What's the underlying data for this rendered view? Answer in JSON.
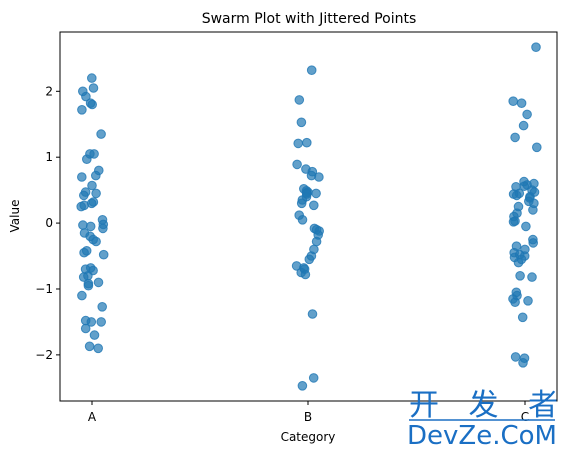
{
  "chart_data": {
    "type": "scatter",
    "title": "Swarm Plot with Jittered Points",
    "xlabel": "Category",
    "ylabel": "Value",
    "categories": [
      "A",
      "B",
      "C"
    ],
    "ylim": [
      -2.7,
      2.9
    ],
    "yticks": [
      -2,
      -1,
      0,
      1,
      2
    ],
    "grid": false,
    "color": "#1f77b4",
    "points": [
      {
        "category": "A",
        "values": [
          2.2,
          2.05,
          2.0,
          1.92,
          1.82,
          1.8,
          1.72,
          1.35,
          1.05,
          1.05,
          0.97,
          0.8,
          0.72,
          0.7,
          0.57,
          0.47,
          0.45,
          0.42,
          0.32,
          0.3,
          0.27,
          0.25,
          0.05,
          -0.02,
          -0.03,
          -0.05,
          -0.08,
          -0.15,
          -0.2,
          -0.25,
          -0.28,
          -0.42,
          -0.45,
          -0.48,
          -0.68,
          -0.7,
          -0.72,
          -0.8,
          -0.82,
          -0.9,
          -0.92,
          -0.95,
          -1.1,
          -1.27,
          -1.48,
          -1.5,
          -1.5,
          -1.6,
          -1.7,
          -1.87,
          -1.9
        ]
      },
      {
        "category": "B",
        "values": [
          2.32,
          1.87,
          1.53,
          1.22,
          1.21,
          0.89,
          0.82,
          0.78,
          0.72,
          0.7,
          0.52,
          0.49,
          0.47,
          0.46,
          0.45,
          0.44,
          0.4,
          0.35,
          0.3,
          0.27,
          0.12,
          0.05,
          -0.08,
          -0.1,
          -0.12,
          -0.18,
          -0.28,
          -0.4,
          -0.5,
          -0.55,
          -0.65,
          -0.68,
          -0.7,
          -0.75,
          -0.78,
          -1.38,
          -2.35,
          -2.47
        ]
      },
      {
        "category": "C",
        "values": [
          2.67,
          1.85,
          1.82,
          1.65,
          1.48,
          1.3,
          1.15,
          0.63,
          0.6,
          0.58,
          0.56,
          0.55,
          0.5,
          0.47,
          0.45,
          0.44,
          0.42,
          0.4,
          0.38,
          0.33,
          0.3,
          0.25,
          0.2,
          0.15,
          0.1,
          0.03,
          0.02,
          -0.05,
          -0.25,
          -0.3,
          -0.35,
          -0.4,
          -0.45,
          -0.48,
          -0.5,
          -0.52,
          -0.55,
          -0.6,
          -0.8,
          -0.82,
          -1.05,
          -1.1,
          -1.15,
          -1.18,
          -1.2,
          -1.43,
          -2.03,
          -2.05,
          -2.12
        ]
      }
    ]
  },
  "watermark": {
    "line1": "开 发 者",
    "line2": "DevZe.CoM"
  }
}
